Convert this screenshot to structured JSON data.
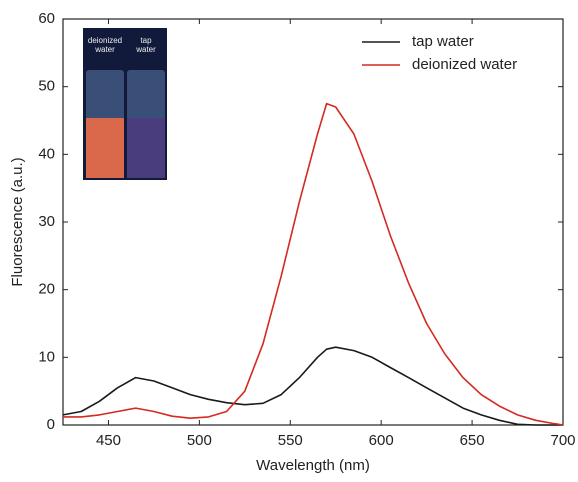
{
  "chart_data": {
    "type": "line",
    "x_label": "Wavelength (nm)",
    "y_label": "Fluorescence (a.u.)",
    "x": [
      425,
      435,
      445,
      455,
      465,
      475,
      485,
      495,
      505,
      515,
      525,
      535,
      545,
      555,
      565,
      570,
      575,
      585,
      595,
      605,
      615,
      625,
      635,
      645,
      655,
      665,
      675,
      685,
      695,
      700
    ],
    "series": [
      {
        "name": "tap water",
        "color": "#1a1a1a",
        "values": [
          1.5,
          2,
          3.5,
          5.5,
          7,
          6.5,
          5.5,
          4.5,
          3.8,
          3.3,
          3,
          3.2,
          4.5,
          7,
          10,
          11.2,
          11.5,
          11,
          10,
          8.5,
          7,
          5.5,
          4,
          2.5,
          1.5,
          0.7,
          0.1,
          0,
          0,
          0
        ]
      },
      {
        "name": "deionized water",
        "color": "#d42a20",
        "values": [
          1.2,
          1.2,
          1.5,
          2,
          2.5,
          2,
          1.3,
          1,
          1.2,
          2,
          5,
          12,
          22,
          33,
          43,
          47.5,
          47,
          43,
          36,
          28,
          21,
          15,
          10.5,
          7,
          4.5,
          2.8,
          1.5,
          0.7,
          0.2,
          0
        ]
      }
    ],
    "xlim": [
      425,
      700
    ],
    "xticks": [
      450,
      500,
      550,
      600,
      650,
      700
    ],
    "ylim": [
      0,
      60
    ],
    "yticks": [
      0,
      10,
      20,
      30,
      40,
      50,
      60
    ],
    "legend": "top-right",
    "inset": {
      "labels": [
        "deionized water",
        "tap water"
      ]
    }
  }
}
